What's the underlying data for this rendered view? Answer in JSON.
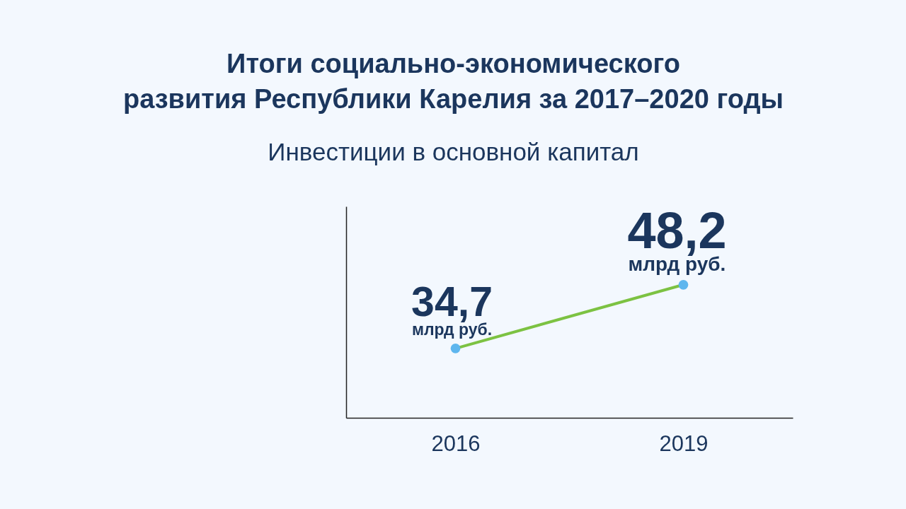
{
  "chart_data": {
    "type": "line",
    "title": "Итоги социально-экономического\nразвития Республики Карелия за 2017–2020 годы",
    "subtitle": "Инвестиции в основной капитал",
    "categories": [
      "2016",
      "2019"
    ],
    "series": [
      {
        "color": "#7cc242",
        "values": [
          34.7,
          48.2
        ],
        "value_labels": [
          "34,7",
          "48,2"
        ]
      }
    ],
    "colors": [
      "#5eb6ee",
      "#5eb6ee"
    ],
    "annotations": [
      {
        "text": "млрд руб.",
        "x": "2016",
        "y": 34.7
      },
      {
        "text": "млрд руб.",
        "x": "2019",
        "y": 48.2
      }
    ],
    "tick_labels": "x",
    "grid": false,
    "marker": "circle",
    "line_style": "solid"
  }
}
